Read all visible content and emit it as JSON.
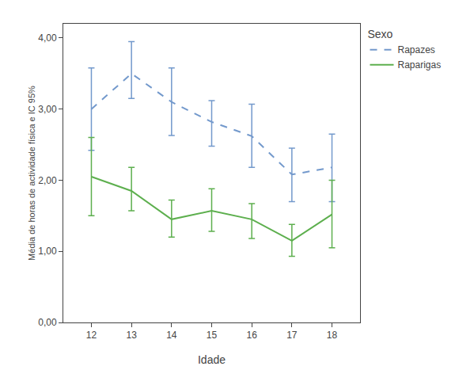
{
  "chart_data": {
    "type": "line",
    "x_label": "Idade",
    "y_label": "Média de horas de actividade física e IC 95%",
    "legend_title": "Sexo",
    "x": [
      12,
      13,
      14,
      15,
      16,
      17,
      18
    ],
    "series": [
      {
        "name": "Rapazes",
        "color": "#7399CC",
        "line_style": "dashed",
        "values": [
          3.0,
          3.5,
          3.1,
          2.82,
          2.62,
          2.08,
          2.18
        ],
        "ci_upper": [
          3.58,
          3.95,
          3.58,
          3.12,
          3.07,
          2.45,
          2.65
        ],
        "ci_lower": [
          2.42,
          3.15,
          2.63,
          2.48,
          2.18,
          1.7,
          1.7
        ]
      },
      {
        "name": "Raparigas",
        "color": "#5DAF4E",
        "line_style": "solid",
        "values": [
          2.05,
          1.85,
          1.45,
          1.57,
          1.45,
          1.15,
          1.52
        ],
        "ci_upper": [
          2.6,
          2.18,
          1.72,
          1.88,
          1.67,
          1.38,
          2.0
        ],
        "ci_lower": [
          1.5,
          1.57,
          1.2,
          1.28,
          1.18,
          0.93,
          1.05
        ]
      }
    ],
    "xlim": [
      11.3,
      18.7
    ],
    "xticks": [
      12,
      13,
      14,
      15,
      16,
      17,
      18
    ],
    "ylim": [
      0.0,
      4.2
    ],
    "yticks": [
      {
        "value": 0.0,
        "label": "0,00"
      },
      {
        "value": 1.0,
        "label": "1,00"
      },
      {
        "value": 2.0,
        "label": "2,00"
      },
      {
        "value": 3.0,
        "label": "3,00"
      },
      {
        "value": 4.0,
        "label": "4,00"
      }
    ],
    "grid": false,
    "legend": "right"
  }
}
